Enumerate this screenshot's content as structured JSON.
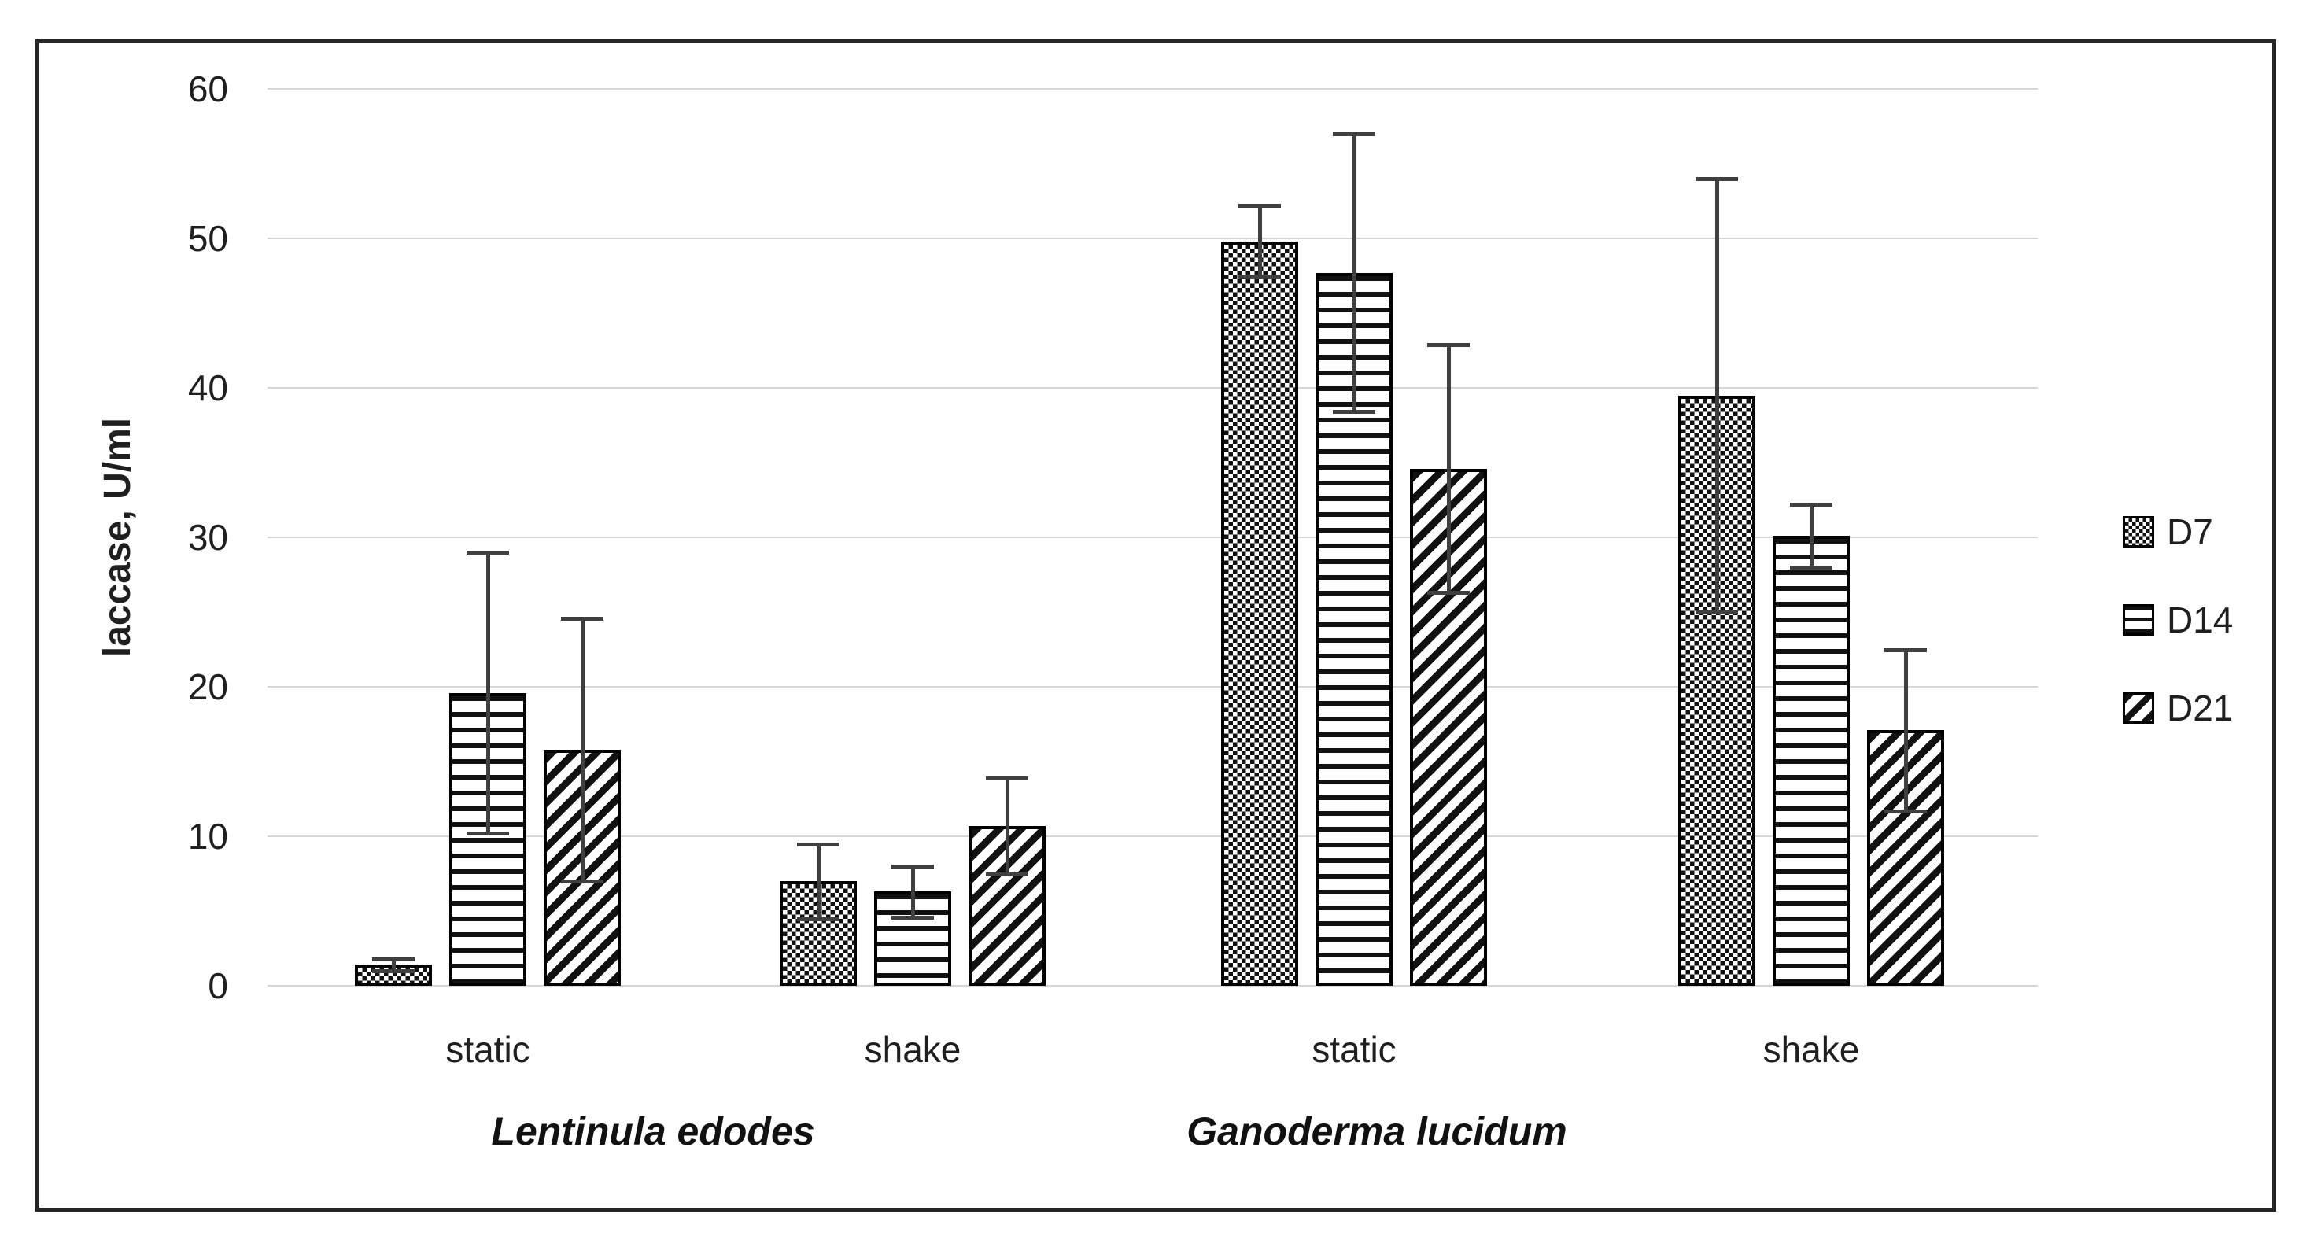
{
  "chart_data": {
    "type": "bar",
    "title": "",
    "ylabel": "laccase, U/ml",
    "ylim": [
      0,
      60
    ],
    "y_ticks": [
      0,
      10,
      20,
      30,
      40,
      50,
      60
    ],
    "grid": true,
    "legend_position": "right-inside",
    "error_bars": true,
    "categories": [
      "static",
      "shake",
      "static",
      "shake"
    ],
    "species_groups": [
      {
        "label": "Lentinula edodes",
        "category_indexes": [
          0,
          1
        ]
      },
      {
        "label": "Ganoderma lucidum",
        "category_indexes": [
          2,
          3
        ]
      }
    ],
    "series": [
      {
        "name": "D7",
        "pattern": "checker",
        "values": [
          1.4,
          7.0,
          49.8,
          39.5
        ],
        "errors": [
          0.4,
          2.5,
          2.4,
          14.5
        ]
      },
      {
        "name": "D14",
        "pattern": "hstripes",
        "values": [
          19.6,
          6.3,
          47.7,
          30.1
        ],
        "errors": [
          9.4,
          1.7,
          9.3,
          2.1
        ]
      },
      {
        "name": "D21",
        "pattern": "dstripes",
        "values": [
          15.8,
          10.7,
          34.6,
          17.1
        ],
        "errors": [
          8.8,
          3.2,
          8.3,
          5.4
        ]
      }
    ],
    "colors": {
      "bar_fill": "#ffffff",
      "bar_stroke": "#000000",
      "pattern_ink": "#111111",
      "gridline": "#d6d6d6",
      "error_bar": "#3f3f3f",
      "text": "#1f1f1f",
      "frame_border": "#262626"
    }
  }
}
